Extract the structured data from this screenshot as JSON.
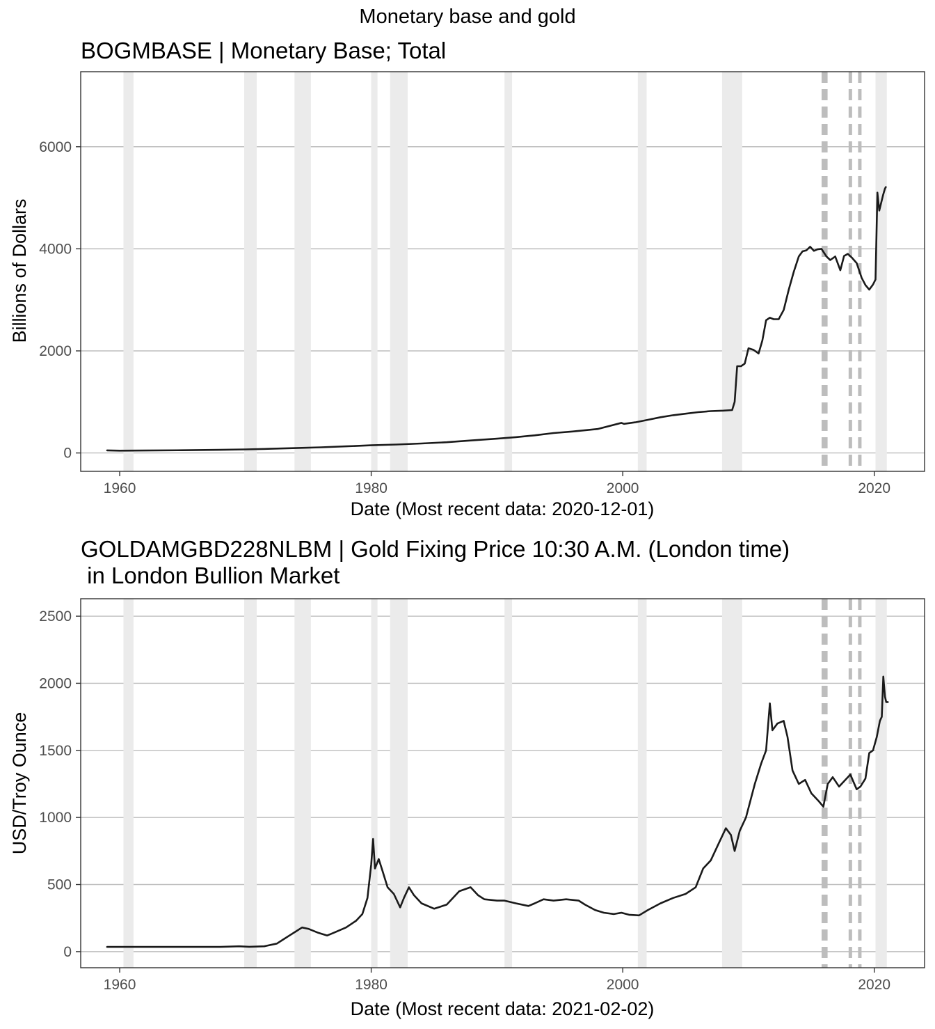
{
  "page": {
    "title": "Monetary base and gold"
  },
  "style": {
    "line_color": "#1a1a1a",
    "grid_color": "#bdbdbd",
    "panel_border": "#333333",
    "recession_fill": "#ebebeb",
    "event_line_color": "#bdbdbd",
    "tick_text_color": "#4d4d4d"
  },
  "shared": {
    "recessions": [
      [
        1960.3,
        1961.1
      ],
      [
        1969.9,
        1970.9
      ],
      [
        1973.9,
        1975.2
      ],
      [
        1980.0,
        1980.5
      ],
      [
        1981.5,
        1982.9
      ],
      [
        1990.6,
        1991.2
      ],
      [
        2001.2,
        2001.9
      ],
      [
        2007.9,
        2009.5
      ],
      [
        2020.1,
        2021.0
      ]
    ],
    "event_lines": [
      2015.95,
      2016.15,
      2018.1,
      2018.85
    ]
  },
  "chart_data": [
    {
      "type": "line",
      "title": "BOGMBASE | Monetary Base; Total",
      "xlabel": "Date (Most recent data: 2020-12-01)",
      "ylabel": "Billions of Dollars",
      "xlim": [
        1956.9,
        2024.0
      ],
      "ylim": [
        -360,
        7470
      ],
      "x_ticks": [
        1960,
        1980,
        2000,
        2020
      ],
      "y_ticks": [
        0,
        2000,
        4000,
        6000
      ],
      "x_tick_labels": [
        "1960",
        "1980",
        "2000",
        "2020"
      ],
      "y_tick_labels": [
        "0",
        "2000",
        "4000",
        "6000"
      ],
      "grid": true,
      "series": [
        {
          "x": [
            1959.0,
            1960.0,
            1962.0,
            1965.0,
            1968.0,
            1970.0,
            1972.0,
            1974.0,
            1976.0,
            1978.0,
            1980.0,
            1982.0,
            1984.0,
            1986.0,
            1988.0,
            1990.0,
            1991.5,
            1993.0,
            1994.5,
            1996.0,
            1998.0,
            1999.9,
            2000.1,
            2001.0,
            2002.0,
            2003.0,
            2004.0,
            2005.0,
            2006.0,
            2007.0,
            2008.0,
            2008.7,
            2008.9,
            2009.1,
            2009.4,
            2009.7,
            2010.0,
            2010.4,
            2010.8,
            2011.1,
            2011.4,
            2011.7,
            2012.0,
            2012.4,
            2012.8,
            2013.2,
            2013.6,
            2014.0,
            2014.3,
            2014.6,
            2014.9,
            2015.2,
            2015.5,
            2015.8,
            2016.2,
            2016.5,
            2016.9,
            2017.3,
            2017.6,
            2017.9,
            2018.2,
            2018.6,
            2019.0,
            2019.3,
            2019.6,
            2019.9,
            2020.1,
            2020.25,
            2020.4,
            2020.55,
            2020.7,
            2020.85,
            2020.92
          ],
          "y": [
            50,
            45,
            48,
            53,
            62,
            70,
            82,
            95,
            110,
            130,
            150,
            165,
            185,
            210,
            245,
            280,
            310,
            345,
            390,
            420,
            470,
            590,
            570,
            600,
            650,
            700,
            740,
            770,
            800,
            820,
            830,
            840,
            1000,
            1700,
            1700,
            1750,
            2050,
            2020,
            1950,
            2200,
            2600,
            2650,
            2620,
            2620,
            2800,
            3200,
            3550,
            3850,
            3950,
            3970,
            4040,
            3960,
            3990,
            4000,
            3850,
            3780,
            3850,
            3580,
            3860,
            3900,
            3830,
            3720,
            3430,
            3290,
            3200,
            3300,
            3400,
            5100,
            4750,
            4900,
            5050,
            5180,
            5210
          ]
        }
      ]
    },
    {
      "type": "line",
      "title": "GOLDAMGBD228NLBM | Gold Fixing Price 10:30 A.M. (London time)\n in London Bullion Market",
      "xlabel": "Date (Most recent data: 2021-02-02)",
      "ylabel": "USD/Troy Ounce",
      "xlim": [
        1956.9,
        2024.0
      ],
      "ylim": [
        -120,
        2630
      ],
      "x_ticks": [
        1960,
        1980,
        2000,
        2020
      ],
      "y_ticks": [
        0,
        500,
        1000,
        1500,
        2000,
        2500
      ],
      "x_tick_labels": [
        "1960",
        "1980",
        "2000",
        "2020"
      ],
      "y_tick_labels": [
        "0",
        "500",
        "1000",
        "1500",
        "2000",
        "2500"
      ],
      "grid": true,
      "series": [
        {
          "x": [
            1959.0,
            1962.0,
            1965.0,
            1968.0,
            1969.5,
            1970.3,
            1971.5,
            1972.5,
            1973.0,
            1973.5,
            1974.0,
            1974.5,
            1975.0,
            1975.8,
            1976.5,
            1977.0,
            1978.0,
            1978.8,
            1979.3,
            1979.7,
            1980.0,
            1980.15,
            1980.3,
            1980.6,
            1980.9,
            1981.3,
            1981.8,
            1982.3,
            1982.6,
            1983.0,
            1983.4,
            1984.0,
            1985.0,
            1986.0,
            1987.0,
            1987.9,
            1988.5,
            1989.0,
            1990.0,
            1990.6,
            1991.5,
            1992.5,
            1993.0,
            1993.7,
            1994.5,
            1995.5,
            1996.5,
            1997.0,
            1997.8,
            1998.5,
            1999.3,
            1999.9,
            2000.5,
            2001.3,
            2002.0,
            2003.0,
            2004.0,
            2005.0,
            2005.8,
            2006.4,
            2007.0,
            2007.6,
            2008.2,
            2008.6,
            2008.9,
            2009.3,
            2009.8,
            2010.5,
            2011.0,
            2011.4,
            2011.7,
            2011.9,
            2012.3,
            2012.8,
            2013.1,
            2013.5,
            2014.0,
            2014.5,
            2015.0,
            2015.6,
            2015.95,
            2016.3,
            2016.7,
            2017.2,
            2017.6,
            2018.1,
            2018.6,
            2018.9,
            2019.3,
            2019.6,
            2019.9,
            2020.2,
            2020.45,
            2020.6,
            2020.72,
            2020.85,
            2020.95,
            2021.08
          ],
          "y": [
            35,
            35,
            35,
            35,
            40,
            36,
            40,
            60,
            90,
            120,
            150,
            180,
            170,
            140,
            120,
            140,
            180,
            230,
            280,
            400,
            650,
            840,
            620,
            690,
            600,
            480,
            430,
            330,
            400,
            480,
            420,
            360,
            320,
            350,
            450,
            480,
            420,
            390,
            380,
            380,
            360,
            340,
            360,
            390,
            380,
            390,
            380,
            350,
            310,
            290,
            280,
            290,
            275,
            270,
            310,
            360,
            400,
            430,
            480,
            620,
            680,
            800,
            920,
            870,
            750,
            900,
            1000,
            1250,
            1400,
            1500,
            1850,
            1650,
            1700,
            1720,
            1600,
            1350,
            1250,
            1280,
            1180,
            1120,
            1080,
            1250,
            1300,
            1230,
            1270,
            1320,
            1210,
            1230,
            1290,
            1480,
            1500,
            1600,
            1720,
            1750,
            2050,
            1900,
            1860,
            1860
          ]
        }
      ]
    }
  ]
}
